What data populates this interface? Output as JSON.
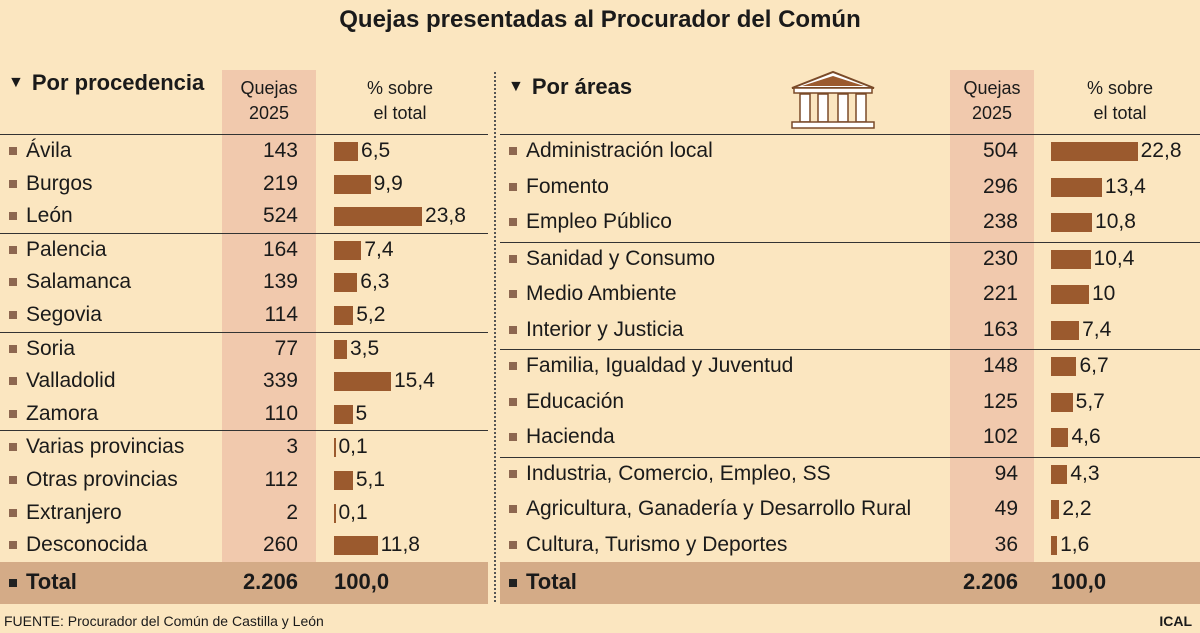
{
  "title": "Quejas presentadas al Procurador del Común",
  "headers": {
    "quejas_l1": "Quejas",
    "quejas_l2": "2025",
    "pct_l1": "% sobre",
    "pct_l2": "el total"
  },
  "left": {
    "heading": "Por procedencia",
    "total_label": "Total",
    "total_value": "2.206",
    "total_pct": "100,0"
  },
  "right": {
    "heading": "Por áreas",
    "total_label": "Total",
    "total_value": "2.206",
    "total_pct": "100,0"
  },
  "source": "FUENTE: Procurador del Común de Castilla y León",
  "credit": "ICAL",
  "colors": {
    "bar": "#9b5a2e",
    "background": "#fbe6c0",
    "quejas_column": "#f1c9ad",
    "total_row": "#d4ab87"
  },
  "icons": {
    "heading_marker": "triangle-down-icon",
    "areas_illustration": "temple-icon"
  },
  "chart_data": [
    {
      "type": "table",
      "title": "Por procedencia",
      "categories": [
        "Ávila",
        "Burgos",
        "León",
        "Palencia",
        "Salamanca",
        "Segovia",
        "Soria",
        "Valladolid",
        "Zamora",
        "Varias provincias",
        "Otras provincias",
        "Extranjero",
        "Desconocida"
      ],
      "series": [
        {
          "name": "Quejas 2025",
          "values": [
            143,
            219,
            524,
            164,
            139,
            114,
            77,
            339,
            110,
            3,
            112,
            2,
            260
          ]
        },
        {
          "name": "% sobre el total",
          "values": [
            6.5,
            9.9,
            23.8,
            7.4,
            6.3,
            5.2,
            3.5,
            15.4,
            5,
            0.1,
            5.1,
            0.1,
            11.8
          ]
        }
      ],
      "pct_labels": [
        "6,5",
        "9,9",
        "23,8",
        "7,4",
        "6,3",
        "5,2",
        "3,5",
        "15,4",
        "5",
        "0,1",
        "5,1",
        "0,1",
        "11,8"
      ],
      "group_starts": [
        3,
        6,
        9
      ]
    },
    {
      "type": "table",
      "title": "Por áreas",
      "categories": [
        "Administración local",
        "Fomento",
        "Empleo Público",
        "Sanidad y Consumo",
        "Medio Ambiente",
        "Interior y Justicia",
        "Familia, Igualdad y Juventud",
        "Educación",
        "Hacienda",
        "Industria, Comercio, Empleo, SS",
        "Agricultura, Ganadería y Desarrollo Rural",
        "Cultura, Turismo y Deportes"
      ],
      "series": [
        {
          "name": "Quejas 2025",
          "values": [
            504,
            296,
            238,
            230,
            221,
            163,
            148,
            125,
            102,
            94,
            49,
            36
          ]
        },
        {
          "name": "% sobre el total",
          "values": [
            22.8,
            13.4,
            10.8,
            10.4,
            10,
            7.4,
            6.7,
            5.7,
            4.6,
            4.3,
            2.2,
            1.6
          ]
        }
      ],
      "pct_labels": [
        "22,8",
        "13,4",
        "10,8",
        "10,4",
        "10",
        "7,4",
        "6,7",
        "5,7",
        "4,6",
        "4,3",
        "2,2",
        "1,6"
      ],
      "group_starts": [
        3,
        6,
        9
      ]
    }
  ]
}
